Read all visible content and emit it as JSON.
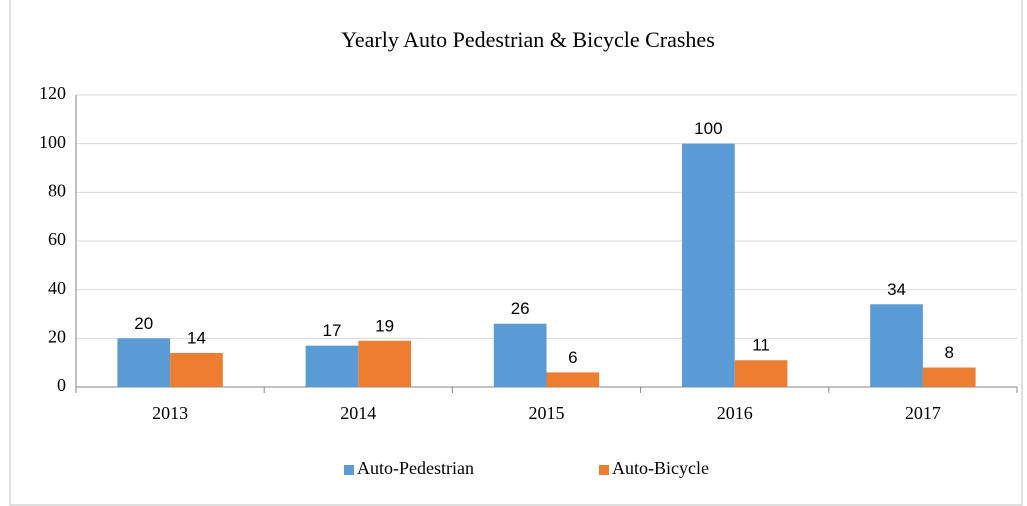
{
  "chart_data": {
    "type": "bar",
    "title": "Yearly Auto Pedestrian & Bicycle Crashes",
    "categories": [
      "2013",
      "2014",
      "2015",
      "2016",
      "2017"
    ],
    "series": [
      {
        "name": "Auto-Pedestrian",
        "color": "#5b9bd5",
        "values": [
          20,
          17,
          26,
          100,
          34
        ]
      },
      {
        "name": "Auto-Bicycle",
        "color": "#ed7d31",
        "values": [
          14,
          19,
          6,
          11,
          8
        ]
      }
    ],
    "ylim": [
      0,
      120
    ],
    "yticks": [
      0,
      20,
      40,
      60,
      80,
      100,
      120
    ],
    "grid": true,
    "legend": "bottom"
  }
}
